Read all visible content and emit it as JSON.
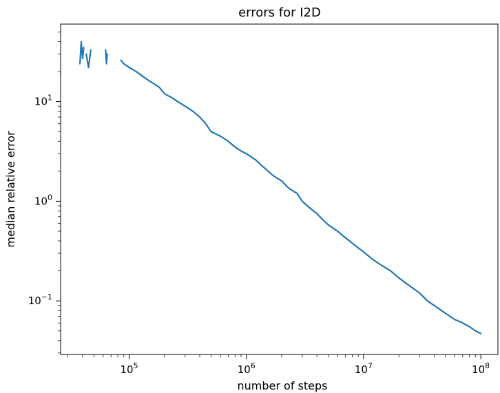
{
  "chart_data": {
    "type": "line",
    "title": "errors for I2D",
    "xlabel": "number of steps",
    "ylabel": "median relative error",
    "xscale": "log",
    "yscale": "log",
    "xlim": [
      26000,
      140000000
    ],
    "ylim": [
      0.029,
      60
    ],
    "grid": false,
    "legend": "none",
    "x_ticks": [
      {
        "value": 100000,
        "base": "10",
        "exp": "5"
      },
      {
        "value": 1000000,
        "base": "10",
        "exp": "6"
      },
      {
        "value": 10000000,
        "base": "10",
        "exp": "7"
      },
      {
        "value": 100000000,
        "base": "10",
        "exp": "8"
      }
    ],
    "y_ticks": [
      {
        "value": 0.1,
        "base": "10",
        "exp": "−1"
      },
      {
        "value": 1,
        "base": "10",
        "exp": "0"
      },
      {
        "value": 10,
        "base": "10",
        "exp": "1"
      }
    ],
    "series": [
      {
        "color": "#1f77b4",
        "segments": [
          {
            "x": [
              38000,
              39000,
              40000,
              41000
            ],
            "y": [
              24,
              40,
              27,
              35
            ]
          },
          {
            "x": [
              43000,
              45000,
              47000
            ],
            "y": [
              30,
              22,
              33
            ]
          },
          {
            "x": [
              63000,
              64000,
              65000
            ],
            "y": [
              33,
              24,
              30
            ]
          },
          {
            "x": [
              85000,
              90000,
              100000,
              115000,
              130000,
              150000,
              180000,
              200000,
              230000,
              260000,
              300000,
              350000,
              400000,
              450000,
              500000,
              600000,
              700000,
              800000,
              900000,
              1000000,
              1200000,
              1400000,
              1700000,
              2000000,
              2300000,
              2700000,
              3000000,
              3500000,
              4000000,
              4500000,
              5000000,
              6000000,
              7000000,
              8000000,
              9000000,
              10000000,
              12000000,
              14000000,
              17000000,
              20000000,
              25000000,
              30000000,
              35000000,
              40000000,
              50000000,
              60000000,
              70000000,
              80000000,
              90000000,
              100000000
            ],
            "y": [
              26,
              24,
              22,
              20,
              18,
              16,
              14,
              12,
              11,
              10,
              9,
              8,
              7,
              6,
              5,
              4.5,
              4,
              3.5,
              3.2,
              3,
              2.6,
              2.2,
              1.8,
              1.6,
              1.35,
              1.2,
              1.0,
              0.85,
              0.75,
              0.65,
              0.58,
              0.5,
              0.43,
              0.38,
              0.34,
              0.31,
              0.26,
              0.23,
              0.2,
              0.17,
              0.14,
              0.12,
              0.1,
              0.09,
              0.075,
              0.065,
              0.06,
              0.055,
              0.05,
              0.047
            ]
          }
        ]
      }
    ]
  }
}
